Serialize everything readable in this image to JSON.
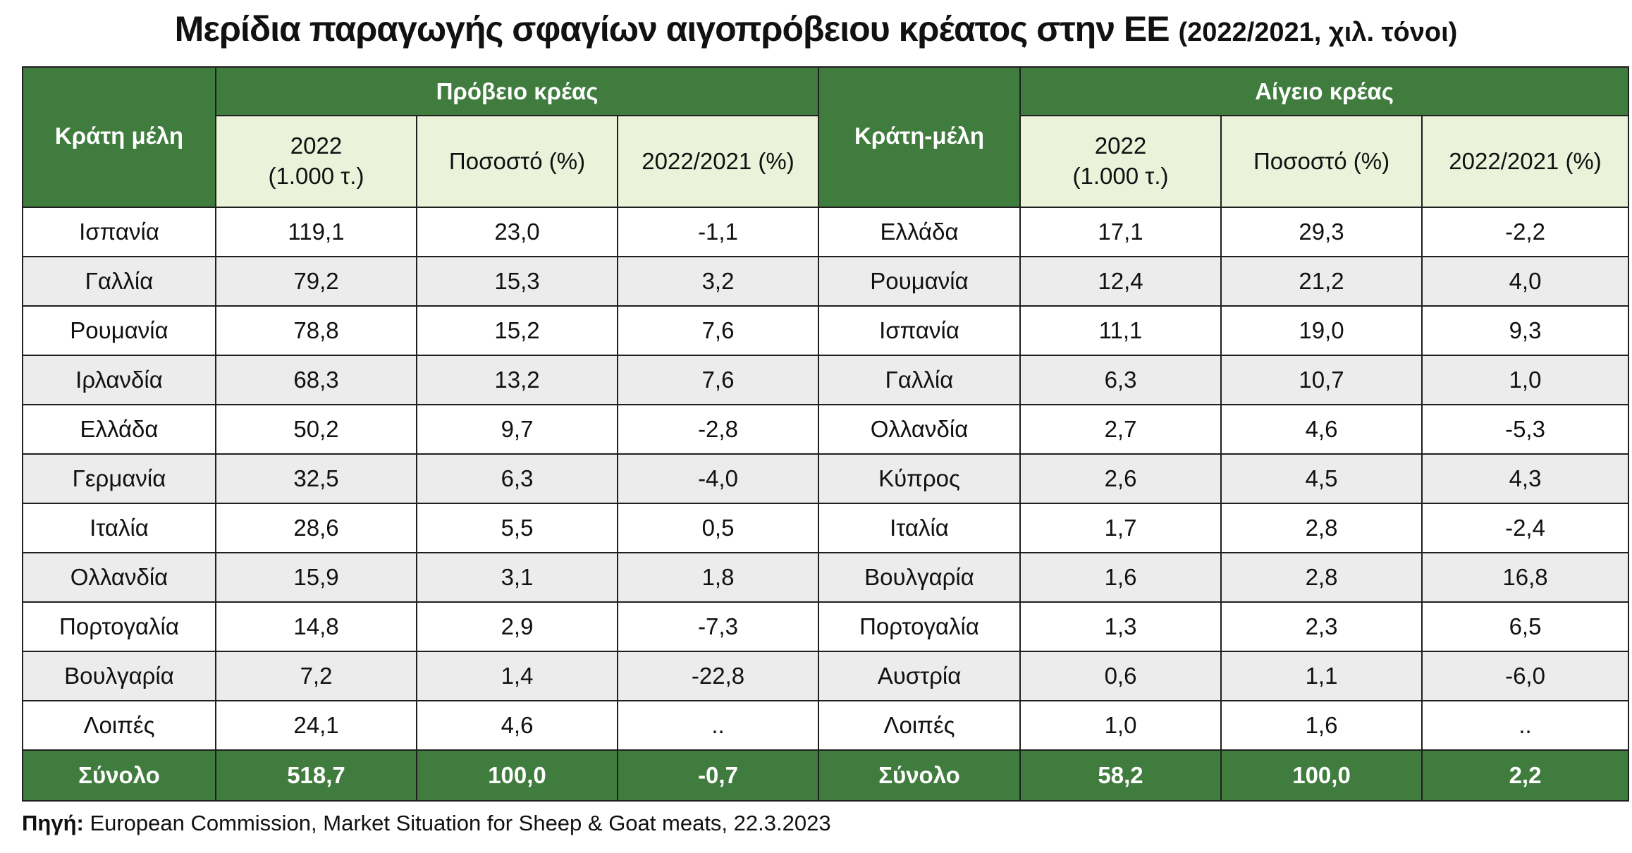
{
  "title": {
    "main": "Μερίδια παραγωγής σφαγίων αιγοπρόβειου κρέατος στην ΕΕ",
    "sub": "(2022/2021, χιλ. τόνοι)"
  },
  "sheep": {
    "group_header": "Πρόβειο κρέας",
    "country_header": "Κράτη μέλη",
    "col_year_line1": "2022",
    "col_year_line2": "(1.000 τ.)",
    "col_share": "Ποσοστό (%)",
    "col_change": "2022/2021 (%)"
  },
  "goat": {
    "group_header": "Αίγειο κρέας",
    "country_header": "Κράτη-μέλη",
    "col_year_line1": "2022",
    "col_year_line2": "(1.000 τ.)",
    "col_share": "Ποσοστό (%)",
    "col_change": "2022/2021 (%)"
  },
  "rows": [
    {
      "s_country": "Ισπανία",
      "s_value": "119,1",
      "s_share": "23,0",
      "s_change": "-1,1",
      "g_country": "Ελλάδα",
      "g_value": "17,1",
      "g_share": "29,3",
      "g_change": "-2,2"
    },
    {
      "s_country": "Γαλλία",
      "s_value": "79,2",
      "s_share": "15,3",
      "s_change": "3,2",
      "g_country": "Ρουμανία",
      "g_value": "12,4",
      "g_share": "21,2",
      "g_change": "4,0"
    },
    {
      "s_country": "Ρουμανία",
      "s_value": "78,8",
      "s_share": "15,2",
      "s_change": "7,6",
      "g_country": "Ισπανία",
      "g_value": "11,1",
      "g_share": "19,0",
      "g_change": "9,3"
    },
    {
      "s_country": "Ιρλανδία",
      "s_value": "68,3",
      "s_share": "13,2",
      "s_change": "7,6",
      "g_country": "Γαλλία",
      "g_value": "6,3",
      "g_share": "10,7",
      "g_change": "1,0"
    },
    {
      "s_country": "Ελλάδα",
      "s_value": "50,2",
      "s_share": "9,7",
      "s_change": "-2,8",
      "g_country": "Ολλανδία",
      "g_value": "2,7",
      "g_share": "4,6",
      "g_change": "-5,3"
    },
    {
      "s_country": "Γερμανία",
      "s_value": "32,5",
      "s_share": "6,3",
      "s_change": "-4,0",
      "g_country": "Κύπρος",
      "g_value": "2,6",
      "g_share": "4,5",
      "g_change": "4,3"
    },
    {
      "s_country": "Ιταλία",
      "s_value": "28,6",
      "s_share": "5,5",
      "s_change": "0,5",
      "g_country": "Ιταλία",
      "g_value": "1,7",
      "g_share": "2,8",
      "g_change": "-2,4"
    },
    {
      "s_country": "Ολλανδία",
      "s_value": "15,9",
      "s_share": "3,1",
      "s_change": "1,8",
      "g_country": "Βουλγαρία",
      "g_value": "1,6",
      "g_share": "2,8",
      "g_change": "16,8"
    },
    {
      "s_country": "Πορτογαλία",
      "s_value": "14,8",
      "s_share": "2,9",
      "s_change": "-7,3",
      "g_country": "Πορτογαλία",
      "g_value": "1,3",
      "g_share": "2,3",
      "g_change": "6,5"
    },
    {
      "s_country": "Βουλγαρία",
      "s_value": "7,2",
      "s_share": "1,4",
      "s_change": "-22,8",
      "g_country": "Αυστρία",
      "g_value": "0,6",
      "g_share": "1,1",
      "g_change": "-6,0"
    },
    {
      "s_country": "Λοιπές",
      "s_value": "24,1",
      "s_share": "4,6",
      "s_change": "..",
      "g_country": "Λοιπές",
      "g_value": "1,0",
      "g_share": "1,6",
      "g_change": ".."
    }
  ],
  "total": {
    "s_label": "Σύνολο",
    "s_value": "518,7",
    "s_share": "100,0",
    "s_change": "-0,7",
    "g_label": "Σύνολο",
    "g_value": "58,2",
    "g_share": "100,0",
    "g_change": "2,2"
  },
  "source": {
    "label": "Πηγή:",
    "text": " European Commission, Market Situation for Sheep & Goat meats, 22.3.2023"
  },
  "colors": {
    "header_green": "#3f7c3d",
    "subheader_light": "#eaf2da",
    "row_alt_gray": "#ececec"
  }
}
